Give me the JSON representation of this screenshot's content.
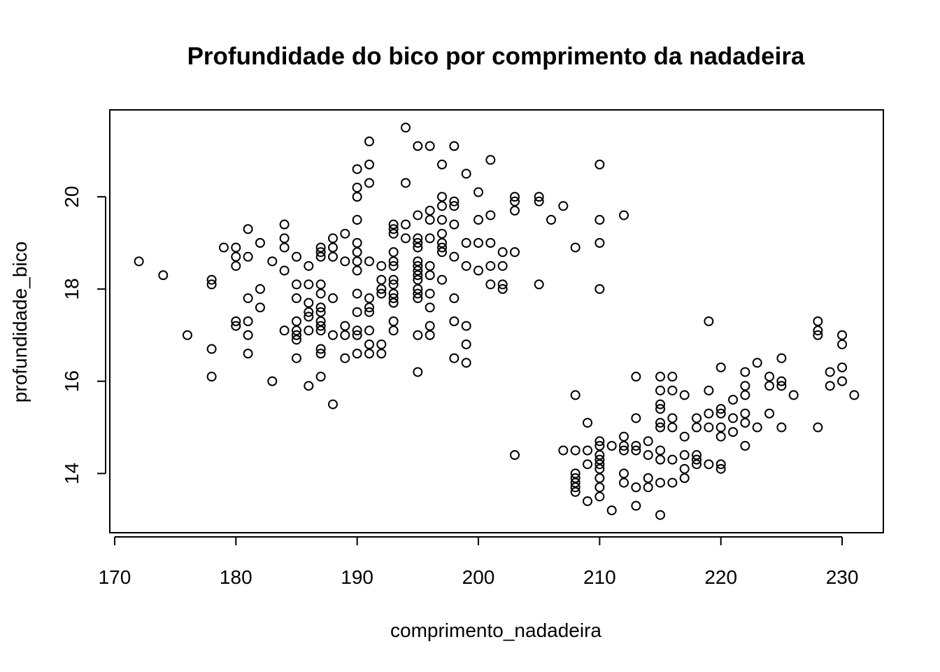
{
  "chart_data": {
    "type": "scatter",
    "title": "Profundidade do bico por comprimento da nadadeira",
    "xlabel": "comprimento_nadadeira",
    "ylabel": "profundidade_bico",
    "xlim": [
      169.6,
      233.4
    ],
    "ylim": [
      12.716,
      21.884
    ],
    "xticks": [
      170,
      180,
      190,
      200,
      210,
      220,
      230
    ],
    "yticks": [
      14,
      16,
      18,
      20
    ],
    "grid": false,
    "legend": "none",
    "marker": "open-circle",
    "color": "#000000",
    "points": [
      [
        172,
        18.6
      ],
      [
        174,
        18.3
      ],
      [
        176,
        17.0
      ],
      [
        178,
        18.2
      ],
      [
        178,
        18.1
      ],
      [
        178,
        16.7
      ],
      [
        178,
        16.1
      ],
      [
        179,
        18.9
      ],
      [
        180,
        18.9
      ],
      [
        180,
        18.7
      ],
      [
        180,
        18.5
      ],
      [
        180,
        17.3
      ],
      [
        180,
        17.2
      ],
      [
        181,
        19.3
      ],
      [
        181,
        18.7
      ],
      [
        181,
        17.8
      ],
      [
        181,
        17.3
      ],
      [
        181,
        17.0
      ],
      [
        181,
        16.6
      ],
      [
        182,
        19.0
      ],
      [
        182,
        18.0
      ],
      [
        182,
        17.6
      ],
      [
        183,
        18.6
      ],
      [
        183,
        16.0
      ],
      [
        184,
        19.4
      ],
      [
        184,
        19.1
      ],
      [
        184,
        18.9
      ],
      [
        184,
        18.4
      ],
      [
        184,
        17.1
      ],
      [
        185,
        18.7
      ],
      [
        185,
        18.1
      ],
      [
        185,
        17.8
      ],
      [
        185,
        17.3
      ],
      [
        185,
        17.1
      ],
      [
        185,
        17.0
      ],
      [
        185,
        16.9
      ],
      [
        185,
        16.5
      ],
      [
        186,
        18.5
      ],
      [
        186,
        18.1
      ],
      [
        186,
        17.7
      ],
      [
        186,
        17.5
      ],
      [
        186,
        17.4
      ],
      [
        186,
        17.1
      ],
      [
        186,
        15.9
      ],
      [
        187,
        18.9
      ],
      [
        187,
        18.8
      ],
      [
        187,
        18.7
      ],
      [
        187,
        18.1
      ],
      [
        187,
        17.9
      ],
      [
        187,
        17.6
      ],
      [
        187,
        17.5
      ],
      [
        187,
        17.3
      ],
      [
        187,
        17.2
      ],
      [
        187,
        17.1
      ],
      [
        187,
        16.7
      ],
      [
        187,
        16.6
      ],
      [
        187,
        16.1
      ],
      [
        188,
        19.1
      ],
      [
        188,
        18.9
      ],
      [
        188,
        18.7
      ],
      [
        188,
        17.8
      ],
      [
        188,
        17.0
      ],
      [
        188,
        15.5
      ],
      [
        189,
        19.2
      ],
      [
        189,
        18.6
      ],
      [
        189,
        17.2
      ],
      [
        189,
        17.0
      ],
      [
        189,
        16.5
      ],
      [
        190,
        20.6
      ],
      [
        190,
        20.2
      ],
      [
        190,
        20.0
      ],
      [
        190,
        19.5
      ],
      [
        190,
        19.0
      ],
      [
        190,
        18.8
      ],
      [
        190,
        18.6
      ],
      [
        190,
        18.4
      ],
      [
        190,
        17.9
      ],
      [
        190,
        17.5
      ],
      [
        190,
        17.1
      ],
      [
        190,
        17.0
      ],
      [
        190,
        16.6
      ],
      [
        191,
        21.2
      ],
      [
        191,
        20.7
      ],
      [
        191,
        20.3
      ],
      [
        191,
        18.6
      ],
      [
        191,
        17.8
      ],
      [
        191,
        17.6
      ],
      [
        191,
        17.5
      ],
      [
        191,
        17.1
      ],
      [
        191,
        16.8
      ],
      [
        191,
        16.6
      ],
      [
        192,
        18.5
      ],
      [
        192,
        18.2
      ],
      [
        192,
        18.0
      ],
      [
        192,
        17.9
      ],
      [
        192,
        16.8
      ],
      [
        192,
        16.6
      ],
      [
        193,
        19.4
      ],
      [
        193,
        19.3
      ],
      [
        193,
        19.2
      ],
      [
        193,
        18.8
      ],
      [
        193,
        18.6
      ],
      [
        193,
        18.5
      ],
      [
        193,
        18.2
      ],
      [
        193,
        18.1
      ],
      [
        193,
        17.9
      ],
      [
        193,
        17.8
      ],
      [
        193,
        17.7
      ],
      [
        193,
        17.3
      ],
      [
        193,
        17.1
      ],
      [
        194,
        21.5
      ],
      [
        194,
        20.3
      ],
      [
        194,
        19.4
      ],
      [
        194,
        19.1
      ],
      [
        195,
        21.1
      ],
      [
        195,
        19.6
      ],
      [
        195,
        19.1
      ],
      [
        195,
        19.0
      ],
      [
        195,
        18.9
      ],
      [
        195,
        18.6
      ],
      [
        195,
        18.5
      ],
      [
        195,
        18.4
      ],
      [
        195,
        18.3
      ],
      [
        195,
        18.2
      ],
      [
        195,
        18.0
      ],
      [
        195,
        17.9
      ],
      [
        195,
        17.8
      ],
      [
        195,
        17.0
      ],
      [
        195,
        16.2
      ],
      [
        196,
        21.1
      ],
      [
        196,
        19.7
      ],
      [
        196,
        19.5
      ],
      [
        196,
        19.1
      ],
      [
        196,
        18.5
      ],
      [
        196,
        18.3
      ],
      [
        196,
        17.9
      ],
      [
        196,
        17.6
      ],
      [
        196,
        17.2
      ],
      [
        196,
        17.0
      ],
      [
        197,
        20.7
      ],
      [
        197,
        20.0
      ],
      [
        197,
        19.8
      ],
      [
        197,
        19.5
      ],
      [
        197,
        19.2
      ],
      [
        197,
        19.0
      ],
      [
        197,
        18.9
      ],
      [
        197,
        18.8
      ],
      [
        197,
        18.2
      ],
      [
        198,
        21.1
      ],
      [
        198,
        19.9
      ],
      [
        198,
        19.8
      ],
      [
        198,
        19.4
      ],
      [
        198,
        18.7
      ],
      [
        198,
        17.8
      ],
      [
        198,
        17.3
      ],
      [
        198,
        16.5
      ],
      [
        199,
        20.5
      ],
      [
        199,
        19.0
      ],
      [
        199,
        18.5
      ],
      [
        199,
        17.2
      ],
      [
        199,
        16.8
      ],
      [
        199,
        16.4
      ],
      [
        200,
        20.1
      ],
      [
        200,
        19.5
      ],
      [
        200,
        19.0
      ],
      [
        200,
        18.4
      ],
      [
        201,
        20.8
      ],
      [
        201,
        19.6
      ],
      [
        201,
        19.0
      ],
      [
        201,
        18.5
      ],
      [
        201,
        18.1
      ],
      [
        202,
        18.8
      ],
      [
        202,
        18.5
      ],
      [
        202,
        18.1
      ],
      [
        202,
        18.0
      ],
      [
        203,
        20.0
      ],
      [
        203,
        19.9
      ],
      [
        203,
        19.7
      ],
      [
        203,
        18.8
      ],
      [
        203,
        14.4
      ],
      [
        205,
        20.0
      ],
      [
        205,
        19.9
      ],
      [
        205,
        18.1
      ],
      [
        206,
        19.5
      ],
      [
        207,
        19.8
      ],
      [
        207,
        14.5
      ],
      [
        208,
        18.9
      ],
      [
        208,
        15.7
      ],
      [
        208,
        14.5
      ],
      [
        208,
        14.0
      ],
      [
        208,
        13.9
      ],
      [
        208,
        13.8
      ],
      [
        208,
        13.7
      ],
      [
        208,
        13.6
      ],
      [
        209,
        15.1
      ],
      [
        209,
        14.5
      ],
      [
        209,
        14.2
      ],
      [
        209,
        13.4
      ],
      [
        210,
        20.7
      ],
      [
        210,
        19.5
      ],
      [
        210,
        19.0
      ],
      [
        210,
        18.0
      ],
      [
        210,
        14.7
      ],
      [
        210,
        14.6
      ],
      [
        210,
        14.4
      ],
      [
        210,
        14.3
      ],
      [
        210,
        14.2
      ],
      [
        210,
        14.1
      ],
      [
        210,
        13.9
      ],
      [
        210,
        13.7
      ],
      [
        210,
        13.5
      ],
      [
        211,
        14.6
      ],
      [
        211,
        13.2
      ],
      [
        212,
        19.6
      ],
      [
        212,
        14.8
      ],
      [
        212,
        14.6
      ],
      [
        212,
        14.5
      ],
      [
        212,
        14.0
      ],
      [
        212,
        13.8
      ],
      [
        213,
        16.1
      ],
      [
        213,
        15.2
      ],
      [
        213,
        14.6
      ],
      [
        213,
        14.5
      ],
      [
        213,
        13.7
      ],
      [
        213,
        13.3
      ],
      [
        214,
        14.7
      ],
      [
        214,
        14.4
      ],
      [
        214,
        13.9
      ],
      [
        214,
        13.7
      ],
      [
        215,
        16.1
      ],
      [
        215,
        15.8
      ],
      [
        215,
        15.5
      ],
      [
        215,
        15.4
      ],
      [
        215,
        15.1
      ],
      [
        215,
        15.0
      ],
      [
        215,
        14.5
      ],
      [
        215,
        14.3
      ],
      [
        215,
        13.8
      ],
      [
        215,
        13.1
      ],
      [
        216,
        16.1
      ],
      [
        216,
        15.8
      ],
      [
        216,
        15.2
      ],
      [
        216,
        15.0
      ],
      [
        216,
        14.3
      ],
      [
        216,
        13.8
      ],
      [
        217,
        15.7
      ],
      [
        217,
        14.8
      ],
      [
        217,
        14.4
      ],
      [
        217,
        14.1
      ],
      [
        217,
        13.9
      ],
      [
        218,
        15.2
      ],
      [
        218,
        15.0
      ],
      [
        218,
        14.4
      ],
      [
        218,
        14.3
      ],
      [
        218,
        14.2
      ],
      [
        219,
        17.3
      ],
      [
        219,
        15.8
      ],
      [
        219,
        15.3
      ],
      [
        219,
        15.0
      ],
      [
        219,
        14.2
      ],
      [
        220,
        16.3
      ],
      [
        220,
        15.4
      ],
      [
        220,
        15.3
      ],
      [
        220,
        15.0
      ],
      [
        220,
        14.8
      ],
      [
        220,
        14.2
      ],
      [
        220,
        14.1
      ],
      [
        221,
        15.6
      ],
      [
        221,
        15.2
      ],
      [
        221,
        14.9
      ],
      [
        222,
        16.2
      ],
      [
        222,
        15.9
      ],
      [
        222,
        15.7
      ],
      [
        222,
        15.3
      ],
      [
        222,
        15.1
      ],
      [
        222,
        14.6
      ],
      [
        223,
        16.4
      ],
      [
        223,
        15.0
      ],
      [
        224,
        16.1
      ],
      [
        224,
        15.9
      ],
      [
        224,
        15.3
      ],
      [
        225,
        16.5
      ],
      [
        225,
        16.0
      ],
      [
        225,
        15.9
      ],
      [
        225,
        15.0
      ],
      [
        226,
        15.7
      ],
      [
        228,
        17.3
      ],
      [
        228,
        17.1
      ],
      [
        228,
        17.0
      ],
      [
        228,
        15.0
      ],
      [
        229,
        16.2
      ],
      [
        229,
        15.9
      ],
      [
        230,
        17.0
      ],
      [
        230,
        16.8
      ],
      [
        230,
        16.3
      ],
      [
        230,
        16.0
      ],
      [
        231,
        15.7
      ]
    ]
  }
}
